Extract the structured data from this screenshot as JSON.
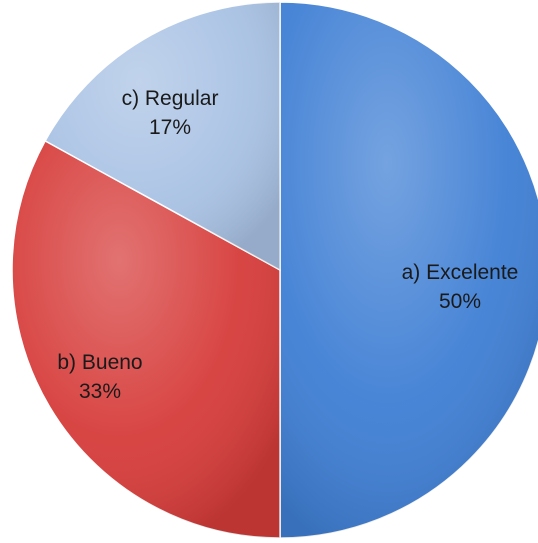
{
  "chart_data": {
    "type": "pie",
    "title": "",
    "start_angle_deg": 0,
    "direction": "clockwise",
    "slices": [
      {
        "category": "a) Excelente",
        "value": 50,
        "value_label": "50%",
        "color": "#3f7fd4"
      },
      {
        "category": "b) Bueno",
        "value": 33,
        "value_label": "33%",
        "color": "#d63c3a"
      },
      {
        "category": "c) Regular",
        "value": 17,
        "value_label": "17%",
        "color": "#a9c2e4"
      }
    ]
  }
}
